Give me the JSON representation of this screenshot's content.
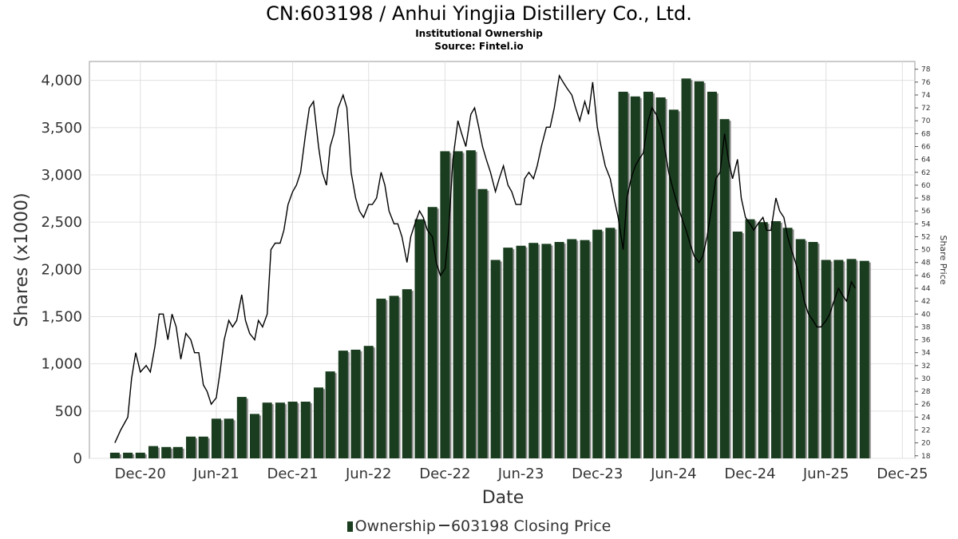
{
  "header": {
    "title": "CN:603198 / Anhui Yingjia Distillery Co., Ltd.",
    "subtitle": "Institutional Ownership",
    "source": "Source: Fintel.io"
  },
  "legend": {
    "ownership": "Ownership",
    "price": "603198 Closing Price"
  },
  "colors": {
    "bar": "#1a3d1f",
    "bar_shadow": "#8c8c8c",
    "line": "#000000",
    "grid": "#e0e0e0"
  },
  "chart_data": {
    "type": "bar",
    "title": "CN:603198 / Anhui Yingjia Distillery Co., Ltd.",
    "subtitle": "Institutional Ownership",
    "xlabel": "Date",
    "ylabel": "Shares (x1000)",
    "y2label": "Share Price",
    "x_ticks": [
      "Dec-20",
      "Jun-21",
      "Dec-21",
      "Jun-22",
      "Dec-22",
      "Jun-23",
      "Dec-23",
      "Jun-24",
      "Dec-24",
      "Jun-25",
      "Dec-25"
    ],
    "xlim": [
      "2020-08-01",
      "2025-12-31"
    ],
    "ylim": [
      0,
      4200
    ],
    "y_ticks": [
      0,
      500,
      1000,
      1500,
      2000,
      2500,
      3000,
      3500,
      4000
    ],
    "y_tick_labels": [
      "0",
      "500",
      "1,000",
      "1,500",
      "2,000",
      "2,500",
      "3,000",
      "3,500",
      "4,000"
    ],
    "y2lim": [
      17.6,
      79.2
    ],
    "y2_ticks": [
      18,
      20,
      22,
      24,
      26,
      28,
      30,
      32,
      34,
      36,
      38,
      40,
      42,
      44,
      46,
      48,
      50,
      52,
      54,
      56,
      58,
      60,
      62,
      64,
      66,
      68,
      70,
      72,
      74,
      76,
      78
    ],
    "grid": true,
    "legend_position": "bottom",
    "series": [
      {
        "name": "Ownership",
        "kind": "bar",
        "dates": [
          "2020-10-01",
          "2020-11-01",
          "2020-12-01",
          "2021-01-01",
          "2021-02-01",
          "2021-03-01",
          "2021-04-01",
          "2021-05-01",
          "2021-06-01",
          "2021-07-01",
          "2021-08-01",
          "2021-09-01",
          "2021-10-01",
          "2021-11-01",
          "2021-12-01",
          "2022-01-01",
          "2022-02-01",
          "2022-03-01",
          "2022-04-01",
          "2022-05-01",
          "2022-06-01",
          "2022-07-01",
          "2022-08-01",
          "2022-09-01",
          "2022-10-01",
          "2022-11-01",
          "2022-12-01",
          "2023-01-01",
          "2023-02-01",
          "2023-03-01",
          "2023-04-01",
          "2023-05-01",
          "2023-06-01",
          "2023-07-01",
          "2023-08-01",
          "2023-09-01",
          "2023-10-01",
          "2023-11-01",
          "2023-12-01",
          "2024-01-01",
          "2024-02-01",
          "2024-03-01",
          "2024-04-01",
          "2024-05-01",
          "2024-06-01",
          "2024-07-01",
          "2024-08-01",
          "2024-09-01",
          "2024-10-01",
          "2024-11-01",
          "2024-12-01",
          "2025-01-01",
          "2025-02-01",
          "2025-03-01",
          "2025-04-01",
          "2025-05-01",
          "2025-06-01",
          "2025-07-01",
          "2025-08-01",
          "2025-09-01"
        ],
        "values": [
          60,
          60,
          60,
          130,
          120,
          120,
          230,
          230,
          420,
          420,
          650,
          470,
          590,
          590,
          600,
          600,
          750,
          920,
          1140,
          1150,
          1190,
          1690,
          1720,
          1790,
          2530,
          2660,
          3250,
          3250,
          3260,
          2850,
          2100,
          2230,
          2250,
          2280,
          2270,
          2290,
          2320,
          2310,
          2420,
          2440,
          3880,
          3830,
          3880,
          3820,
          3690,
          4020,
          3990,
          3880,
          3590,
          2400,
          2530,
          2500,
          2510,
          2440,
          2320,
          2290,
          2100,
          2100,
          2110,
          2090
        ]
      },
      {
        "name": "603198 Closing Price",
        "kind": "line",
        "points": [
          [
            "2020-10-01",
            20
          ],
          [
            "2020-10-15",
            22
          ],
          [
            "2020-11-01",
            24
          ],
          [
            "2020-11-10",
            30
          ],
          [
            "2020-11-20",
            34
          ],
          [
            "2020-12-01",
            31
          ],
          [
            "2020-12-15",
            32
          ],
          [
            "2020-12-25",
            31
          ],
          [
            "2021-01-05",
            35
          ],
          [
            "2021-01-15",
            40
          ],
          [
            "2021-01-25",
            40
          ],
          [
            "2021-02-05",
            36
          ],
          [
            "2021-02-15",
            40
          ],
          [
            "2021-02-25",
            38
          ],
          [
            "2021-03-08",
            33
          ],
          [
            "2021-03-20",
            37
          ],
          [
            "2021-04-01",
            36
          ],
          [
            "2021-04-10",
            34
          ],
          [
            "2021-04-20",
            34
          ],
          [
            "2021-05-01",
            29
          ],
          [
            "2021-05-10",
            28
          ],
          [
            "2021-05-20",
            26
          ],
          [
            "2021-06-01",
            27
          ],
          [
            "2021-06-10",
            31
          ],
          [
            "2021-06-20",
            36
          ],
          [
            "2021-07-01",
            39
          ],
          [
            "2021-07-10",
            38
          ],
          [
            "2021-07-20",
            39
          ],
          [
            "2021-08-01",
            43
          ],
          [
            "2021-08-10",
            39
          ],
          [
            "2021-08-20",
            37
          ],
          [
            "2021-09-01",
            36
          ],
          [
            "2021-09-10",
            39
          ],
          [
            "2021-09-20",
            38
          ],
          [
            "2021-10-01",
            40
          ],
          [
            "2021-10-10",
            50
          ],
          [
            "2021-10-20",
            51
          ],
          [
            "2021-11-01",
            51
          ],
          [
            "2021-11-10",
            53
          ],
          [
            "2021-11-20",
            57
          ],
          [
            "2021-12-01",
            59
          ],
          [
            "2021-12-10",
            60
          ],
          [
            "2021-12-20",
            62
          ],
          [
            "2022-01-01",
            68
          ],
          [
            "2022-01-10",
            72
          ],
          [
            "2022-01-20",
            73
          ],
          [
            "2022-02-01",
            66
          ],
          [
            "2022-02-10",
            62
          ],
          [
            "2022-02-20",
            60
          ],
          [
            "2022-03-01",
            66
          ],
          [
            "2022-03-10",
            68
          ],
          [
            "2022-03-20",
            72
          ],
          [
            "2022-04-01",
            74
          ],
          [
            "2022-04-10",
            72
          ],
          [
            "2022-04-20",
            62
          ],
          [
            "2022-05-01",
            58
          ],
          [
            "2022-05-10",
            56
          ],
          [
            "2022-05-20",
            55
          ],
          [
            "2022-06-01",
            57
          ],
          [
            "2022-06-10",
            57
          ],
          [
            "2022-06-20",
            58
          ],
          [
            "2022-07-01",
            62
          ],
          [
            "2022-07-10",
            60
          ],
          [
            "2022-07-20",
            56
          ],
          [
            "2022-08-01",
            54
          ],
          [
            "2022-08-10",
            54
          ],
          [
            "2022-08-20",
            52
          ],
          [
            "2022-09-01",
            48
          ],
          [
            "2022-09-10",
            52
          ],
          [
            "2022-09-20",
            54
          ],
          [
            "2022-10-01",
            56
          ],
          [
            "2022-10-10",
            55
          ],
          [
            "2022-10-20",
            53
          ],
          [
            "2022-11-01",
            52
          ],
          [
            "2022-11-10",
            48
          ],
          [
            "2022-11-20",
            46
          ],
          [
            "2022-12-01",
            47
          ],
          [
            "2022-12-10",
            53
          ],
          [
            "2022-12-20",
            64
          ],
          [
            "2023-01-01",
            70
          ],
          [
            "2023-01-10",
            68
          ],
          [
            "2023-01-20",
            66
          ],
          [
            "2023-02-01",
            71
          ],
          [
            "2023-02-10",
            72
          ],
          [
            "2023-02-20",
            69
          ],
          [
            "2023-03-01",
            66
          ],
          [
            "2023-03-10",
            64
          ],
          [
            "2023-03-20",
            62
          ],
          [
            "2023-04-01",
            59
          ],
          [
            "2023-04-10",
            61
          ],
          [
            "2023-04-20",
            63
          ],
          [
            "2023-05-01",
            60
          ],
          [
            "2023-05-10",
            59
          ],
          [
            "2023-05-20",
            57
          ],
          [
            "2023-06-01",
            57
          ],
          [
            "2023-06-10",
            61
          ],
          [
            "2023-06-20",
            62
          ],
          [
            "2023-07-01",
            61
          ],
          [
            "2023-07-10",
            63
          ],
          [
            "2023-07-20",
            66
          ],
          [
            "2023-08-01",
            69
          ],
          [
            "2023-08-10",
            69
          ],
          [
            "2023-08-20",
            72
          ],
          [
            "2023-09-01",
            77
          ],
          [
            "2023-09-10",
            76
          ],
          [
            "2023-09-20",
            75
          ],
          [
            "2023-10-01",
            74
          ],
          [
            "2023-10-10",
            72
          ],
          [
            "2023-10-20",
            70
          ],
          [
            "2023-11-01",
            73
          ],
          [
            "2023-11-10",
            71
          ],
          [
            "2023-11-20",
            76
          ],
          [
            "2023-12-01",
            69
          ],
          [
            "2023-12-10",
            66
          ],
          [
            "2023-12-20",
            63
          ],
          [
            "2024-01-01",
            61
          ],
          [
            "2024-01-10",
            58
          ],
          [
            "2024-01-20",
            55
          ],
          [
            "2024-02-01",
            50
          ],
          [
            "2024-02-10",
            58
          ],
          [
            "2024-02-20",
            61
          ],
          [
            "2024-03-01",
            63
          ],
          [
            "2024-03-10",
            64
          ],
          [
            "2024-03-20",
            65
          ],
          [
            "2024-04-01",
            70
          ],
          [
            "2024-04-10",
            72
          ],
          [
            "2024-04-20",
            71
          ],
          [
            "2024-05-01",
            69
          ],
          [
            "2024-05-10",
            66
          ],
          [
            "2024-05-20",
            62
          ],
          [
            "2024-06-01",
            59
          ],
          [
            "2024-06-10",
            57
          ],
          [
            "2024-06-20",
            55
          ],
          [
            "2024-07-01",
            53
          ],
          [
            "2024-07-10",
            51
          ],
          [
            "2024-07-20",
            49
          ],
          [
            "2024-08-01",
            48
          ],
          [
            "2024-08-10",
            49
          ],
          [
            "2024-08-20",
            52
          ],
          [
            "2024-09-01",
            57
          ],
          [
            "2024-09-10",
            61
          ],
          [
            "2024-09-20",
            62
          ],
          [
            "2024-10-01",
            68
          ],
          [
            "2024-10-10",
            64
          ],
          [
            "2024-10-20",
            61
          ],
          [
            "2024-11-01",
            64
          ],
          [
            "2024-11-10",
            58
          ],
          [
            "2024-11-20",
            55
          ],
          [
            "2024-12-01",
            54
          ],
          [
            "2024-12-10",
            53
          ],
          [
            "2024-12-20",
            54
          ],
          [
            "2025-01-01",
            55
          ],
          [
            "2025-01-10",
            53
          ],
          [
            "2025-01-20",
            53
          ],
          [
            "2025-02-01",
            58
          ],
          [
            "2025-02-10",
            56
          ],
          [
            "2025-02-20",
            55
          ],
          [
            "2025-03-01",
            52
          ],
          [
            "2025-03-10",
            50
          ],
          [
            "2025-03-20",
            48
          ],
          [
            "2025-04-01",
            45
          ],
          [
            "2025-04-10",
            42
          ],
          [
            "2025-04-20",
            40
          ],
          [
            "2025-05-01",
            39
          ],
          [
            "2025-05-10",
            38
          ],
          [
            "2025-05-20",
            38
          ],
          [
            "2025-06-01",
            39
          ],
          [
            "2025-06-10",
            40
          ],
          [
            "2025-06-20",
            42
          ],
          [
            "2025-07-01",
            44
          ],
          [
            "2025-07-10",
            43
          ],
          [
            "2025-07-20",
            42
          ],
          [
            "2025-08-01",
            45
          ],
          [
            "2025-08-10",
            44
          ]
        ]
      }
    ]
  }
}
